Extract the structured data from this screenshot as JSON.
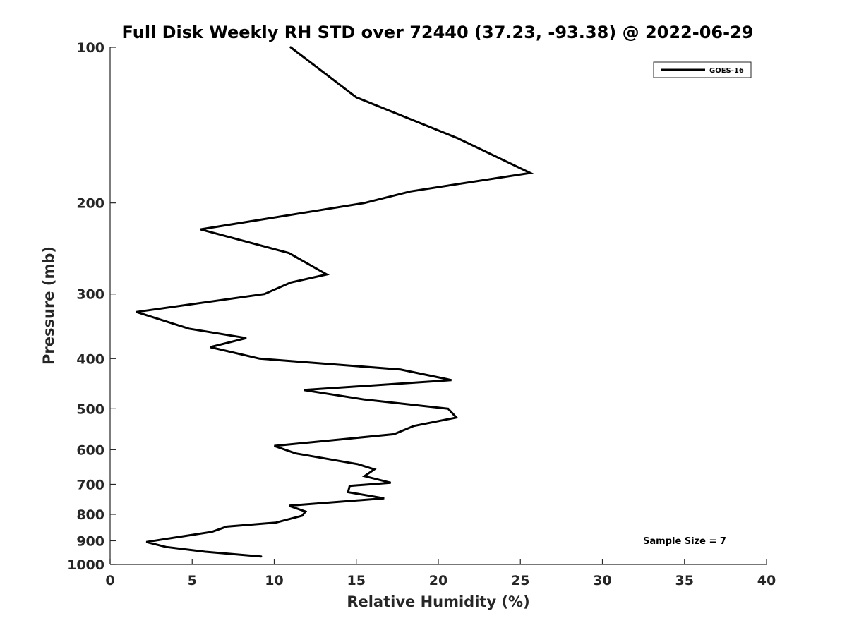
{
  "chart_data": {
    "type": "line",
    "title": "Full Disk Weekly RH STD over 72440 (37.23, -93.38) @ 2022-06-29",
    "xlabel": "Relative Humidity (%)",
    "ylabel": "Pressure (mb)",
    "xlim": [
      0,
      40
    ],
    "ylim": [
      100,
      1000
    ],
    "y_scale": "log",
    "y_reversed": true,
    "x_ticks": [
      0,
      5,
      10,
      15,
      20,
      25,
      30,
      35,
      40
    ],
    "y_ticks": [
      100,
      200,
      300,
      400,
      500,
      600,
      700,
      800,
      900,
      1000
    ],
    "grid": false,
    "legend_position": "top-right",
    "series": [
      {
        "name": "GOES-16",
        "color": "#000000",
        "points": [
          {
            "x": 11.0,
            "p": 100
          },
          {
            "x": 15.0,
            "p": 125
          },
          {
            "x": 21.2,
            "p": 150
          },
          {
            "x": 25.6,
            "p": 175
          },
          {
            "x": 18.3,
            "p": 190
          },
          {
            "x": 15.5,
            "p": 200
          },
          {
            "x": 5.5,
            "p": 225
          },
          {
            "x": 10.9,
            "p": 250
          },
          {
            "x": 13.2,
            "p": 275
          },
          {
            "x": 11.0,
            "p": 285
          },
          {
            "x": 9.4,
            "p": 300
          },
          {
            "x": 1.6,
            "p": 325
          },
          {
            "x": 4.8,
            "p": 350
          },
          {
            "x": 8.3,
            "p": 365
          },
          {
            "x": 6.1,
            "p": 380
          },
          {
            "x": 9.1,
            "p": 400
          },
          {
            "x": 17.7,
            "p": 420
          },
          {
            "x": 20.8,
            "p": 440
          },
          {
            "x": 11.8,
            "p": 460
          },
          {
            "x": 15.5,
            "p": 480
          },
          {
            "x": 20.6,
            "p": 500
          },
          {
            "x": 21.1,
            "p": 520
          },
          {
            "x": 18.5,
            "p": 540
          },
          {
            "x": 17.3,
            "p": 560
          },
          {
            "x": 10.0,
            "p": 590
          },
          {
            "x": 11.3,
            "p": 610
          },
          {
            "x": 15.1,
            "p": 640
          },
          {
            "x": 16.1,
            "p": 655
          },
          {
            "x": 15.5,
            "p": 675
          },
          {
            "x": 17.1,
            "p": 695
          },
          {
            "x": 14.6,
            "p": 705
          },
          {
            "x": 14.5,
            "p": 725
          },
          {
            "x": 16.7,
            "p": 745
          },
          {
            "x": 10.9,
            "p": 770
          },
          {
            "x": 11.9,
            "p": 790
          },
          {
            "x": 11.7,
            "p": 805
          },
          {
            "x": 10.1,
            "p": 830
          },
          {
            "x": 7.1,
            "p": 845
          },
          {
            "x": 6.2,
            "p": 865
          },
          {
            "x": 2.2,
            "p": 905
          },
          {
            "x": 3.4,
            "p": 925
          },
          {
            "x": 5.8,
            "p": 945
          },
          {
            "x": 9.2,
            "p": 965
          }
        ]
      }
    ],
    "annotations": [
      "Sample Size = 7"
    ]
  }
}
